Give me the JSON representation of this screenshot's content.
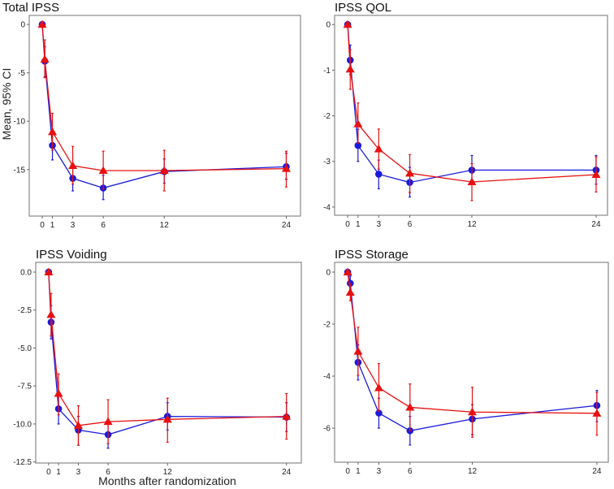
{
  "y_axis_label": "Mean, 95% CI",
  "x_axis_label": "Months after randomization",
  "colors": {
    "series_a": "#1a1adb",
    "series_b": "#e81010",
    "frame": "#888888"
  },
  "chart_data": [
    {
      "type": "line",
      "title": "Total IPSS",
      "x": [
        0,
        0.25,
        1,
        3,
        6,
        12,
        24
      ],
      "xticks": [
        0,
        1,
        3,
        6,
        12,
        24
      ],
      "yticks": [
        0,
        -5,
        -10,
        -15
      ],
      "ytick_labels": [
        "0",
        "-5",
        "-10",
        "-15"
      ],
      "xlim": [
        -1.28,
        25.4
      ],
      "ylim": [
        -19.8,
        0.93
      ],
      "series": [
        {
          "marker": "circle",
          "color": "#1a1adb",
          "values": [
            0,
            -3.8,
            -12.5,
            -15.9,
            -16.9,
            -15.2,
            -14.7
          ],
          "ci_low": [
            0,
            -5.4,
            -14.0,
            -17.2,
            -18.1,
            -16.4,
            -16.0
          ],
          "ci_high": [
            0,
            -2.3,
            -11.0,
            -14.6,
            -15.6,
            -13.9,
            -13.3
          ]
        },
        {
          "marker": "triangle",
          "color": "#e81010",
          "values": [
            0,
            -3.6,
            -11.1,
            -14.6,
            -15.1,
            -15.1,
            -14.9
          ],
          "ci_low": [
            0,
            -5.5,
            -13.0,
            -16.5,
            -17.0,
            -17.2,
            -16.8
          ],
          "ci_high": [
            0,
            -1.6,
            -9.2,
            -12.6,
            -13.1,
            -13.0,
            -13.1
          ]
        }
      ]
    },
    {
      "type": "line",
      "title": "IPSS QOL",
      "x": [
        0,
        0.25,
        1,
        3,
        6,
        12,
        24
      ],
      "xticks": [
        0,
        1,
        3,
        6,
        12,
        24
      ],
      "yticks": [
        0,
        -1,
        -2,
        -3,
        -4
      ],
      "ytick_labels": [
        "0",
        "-1",
        "-2",
        "-3",
        "-4"
      ],
      "xlim": [
        -1.26,
        25.1
      ],
      "ylim": [
        -4.18,
        0.2
      ],
      "series": [
        {
          "marker": "circle",
          "color": "#1a1adb",
          "values": [
            0,
            -0.78,
            -2.65,
            -3.28,
            -3.46,
            -3.19,
            -3.19
          ],
          "ci_low": [
            0,
            -1.1,
            -3.0,
            -3.6,
            -3.78,
            -3.5,
            -3.5
          ],
          "ci_high": [
            0,
            -0.45,
            -2.3,
            -2.97,
            -3.13,
            -2.87,
            -2.87
          ]
        },
        {
          "marker": "triangle",
          "color": "#e81010",
          "values": [
            0,
            -0.98,
            -2.18,
            -2.73,
            -3.26,
            -3.45,
            -3.29
          ],
          "ci_low": [
            0,
            -1.42,
            -2.6,
            -3.17,
            -3.68,
            -3.86,
            -3.67
          ],
          "ci_high": [
            0,
            -0.55,
            -1.72,
            -2.29,
            -2.85,
            -3.05,
            -2.9
          ]
        }
      ]
    },
    {
      "type": "line",
      "title": "IPSS Voiding",
      "x": [
        0,
        0.25,
        1,
        3,
        6,
        12,
        24
      ],
      "xticks": [
        0,
        1,
        3,
        6,
        12,
        24
      ],
      "yticks": [
        0,
        -2.5,
        -5,
        -7.5,
        -10,
        -12.5
      ],
      "ytick_labels": [
        "0.0",
        "-2.5",
        "-5.0",
        "-7.5",
        "-10.0",
        "-12.5"
      ],
      "xlim": [
        -1.3,
        25.5
      ],
      "ylim": [
        -12.57,
        0.64
      ],
      "series": [
        {
          "marker": "circle",
          "color": "#1a1adb",
          "values": [
            0,
            -3.3,
            -9.0,
            -10.4,
            -10.7,
            -9.5,
            -9.55
          ],
          "ci_low": [
            0,
            -4.4,
            -10.0,
            -11.4,
            -11.6,
            -10.4,
            -10.5
          ],
          "ci_high": [
            0,
            -2.2,
            -8.0,
            -9.5,
            -9.9,
            -8.6,
            -8.6
          ]
        },
        {
          "marker": "triangle",
          "color": "#e81010",
          "values": [
            0,
            -2.8,
            -8.0,
            -10.1,
            -9.85,
            -9.7,
            -9.5
          ],
          "ci_low": [
            0,
            -4.2,
            -9.4,
            -11.4,
            -11.3,
            -11.2,
            -11.0
          ],
          "ci_high": [
            0,
            -1.4,
            -6.7,
            -8.8,
            -8.4,
            -8.3,
            -8.0
          ]
        }
      ]
    },
    {
      "type": "line",
      "title": "IPSS Storage",
      "x": [
        0,
        0.25,
        1,
        3,
        6,
        12,
        24
      ],
      "xticks": [
        0,
        1,
        3,
        6,
        12,
        24
      ],
      "yticks": [
        0,
        -2,
        -4,
        -6
      ],
      "ytick_labels": [
        "0",
        "-2",
        "-4",
        "-6"
      ],
      "xlim": [
        -1.26,
        25.1
      ],
      "ylim": [
        -7.31,
        0.375
      ],
      "series": [
        {
          "marker": "circle",
          "color": "#1a1adb",
          "values": [
            0,
            -0.43,
            -3.47,
            -5.42,
            -6.1,
            -5.65,
            -5.13
          ],
          "ci_low": [
            0,
            -0.7,
            -4.15,
            -6.0,
            -6.65,
            -6.25,
            -5.75
          ],
          "ci_high": [
            0,
            -0.15,
            -2.8,
            -4.85,
            -5.55,
            -5.1,
            -4.55
          ]
        },
        {
          "marker": "triangle",
          "color": "#e81010",
          "values": [
            0,
            -0.78,
            -3.05,
            -4.45,
            -5.2,
            -5.38,
            -5.43
          ],
          "ci_low": [
            0,
            -1.1,
            -3.97,
            -5.35,
            -6.1,
            -6.35,
            -6.27
          ],
          "ci_high": [
            0,
            -0.45,
            -2.12,
            -3.52,
            -4.3,
            -4.43,
            -4.62
          ]
        }
      ]
    }
  ]
}
